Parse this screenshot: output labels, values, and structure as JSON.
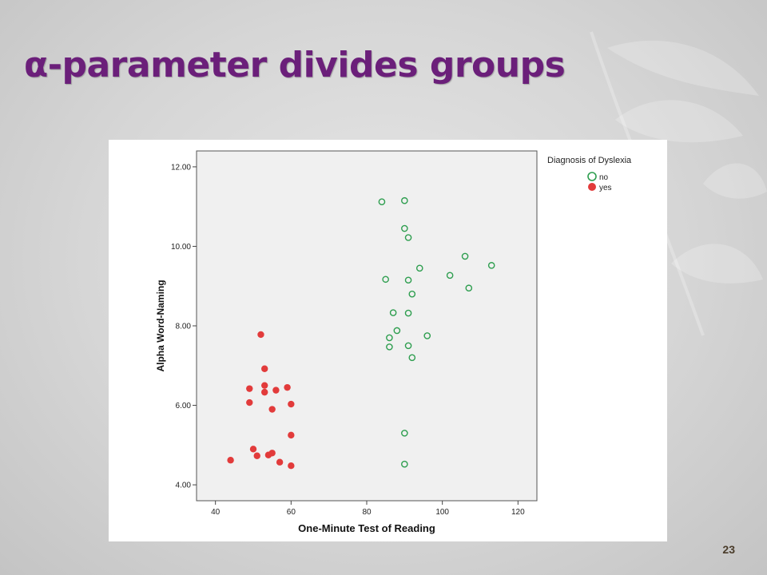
{
  "slide": {
    "title": "α-parameter divides groups",
    "slide_number": "23"
  },
  "colors": {
    "title": "#6b1f7a",
    "no": "#2e9e4f",
    "yes": "#e23b3b",
    "plot_background": "#f0f0f0"
  },
  "chart_data": {
    "type": "scatter",
    "title": "",
    "xlabel": "One-Minute Test of Reading",
    "ylabel": "Alpha Word-Naming",
    "xlim": [
      35,
      125
    ],
    "ylim": [
      3.6,
      12.4
    ],
    "x_ticks": [
      40,
      60,
      80,
      100,
      120
    ],
    "y_ticks": [
      4.0,
      6.0,
      8.0,
      10.0,
      12.0
    ],
    "x_tick_labels": [
      "40",
      "60",
      "80",
      "100",
      "120"
    ],
    "y_tick_labels": [
      "4.00",
      "6.00",
      "8.00",
      "10.00",
      "12.00"
    ],
    "grid": false,
    "legend": {
      "title": "Diagnosis of Dyslexia",
      "position": "right"
    },
    "series": [
      {
        "name": "no",
        "marker": "hollow-circle",
        "x": [
          84,
          90,
          90,
          91,
          106,
          113,
          94,
          85,
          91,
          102,
          107,
          92,
          87,
          91,
          88,
          86,
          96,
          86,
          91,
          92,
          90,
          90
        ],
        "y": [
          11.12,
          11.15,
          10.45,
          10.22,
          9.75,
          9.52,
          9.45,
          9.17,
          9.15,
          9.27,
          8.95,
          8.8,
          8.33,
          8.32,
          7.88,
          7.7,
          7.75,
          7.47,
          7.5,
          7.2,
          5.3,
          4.52
        ]
      },
      {
        "name": "yes",
        "marker": "filled-circle",
        "x": [
          52,
          53,
          49,
          53,
          53,
          56,
          59,
          49,
          55,
          60,
          60,
          50,
          51,
          55,
          54,
          44,
          57,
          60
        ],
        "y": [
          7.78,
          6.92,
          6.42,
          6.5,
          6.33,
          6.38,
          6.45,
          6.07,
          5.9,
          6.03,
          5.25,
          4.9,
          4.73,
          4.8,
          4.75,
          4.62,
          4.57,
          4.48
        ]
      }
    ]
  }
}
